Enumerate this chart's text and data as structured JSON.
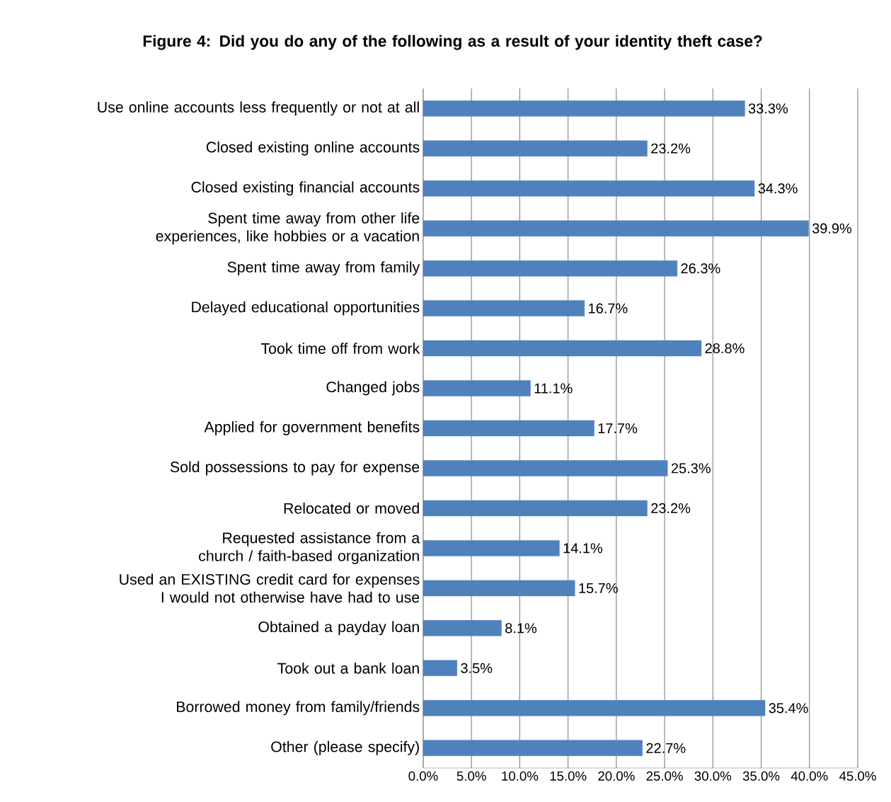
{
  "chart_data": {
    "type": "bar",
    "orientation": "horizontal",
    "title": "Figure 4:  Did you do any of the following as a result of your identity theft case?",
    "categories": [
      "Use online accounts less frequently or not at all",
      "Closed existing online accounts",
      "Closed existing financial accounts",
      "Spent time away from other life experiences, like hobbies or a vacation",
      "Spent time away from family",
      "Delayed educational opportunities",
      "Took time off from work",
      "Changed jobs",
      "Applied for government benefits",
      "Sold possessions to pay for expense",
      "Relocated or moved",
      "Requested assistance from a church / faith-based organization",
      "Used an EXISTING credit card for expenses I would not otherwise have had to use",
      "Obtained a payday loan",
      "Took out a bank loan",
      "Borrowed money from family/friends",
      "Other (please specify)"
    ],
    "values": [
      33.3,
      23.2,
      34.3,
      39.9,
      26.3,
      16.7,
      28.8,
      11.1,
      17.7,
      25.3,
      23.2,
      14.1,
      15.7,
      8.1,
      3.5,
      35.4,
      22.7
    ],
    "value_labels": [
      "33.3%",
      "23.2%",
      "34.3%",
      "39.9%",
      "26.3%",
      "16.7%",
      "28.8%",
      "11.1%",
      "17.7%",
      "25.3%",
      "23.2%",
      "14.1%",
      "15.7%",
      "8.1%",
      "3.5%",
      "35.4%",
      "22.7%"
    ],
    "color": "#4f81bd",
    "xlim": [
      0,
      45
    ],
    "xticks": [
      {
        "value": 0,
        "label": "0.0%"
      },
      {
        "value": 5,
        "label": "5.0%"
      },
      {
        "value": 10,
        "label": "10.0%"
      },
      {
        "value": 15,
        "label": "15.0%"
      },
      {
        "value": 20,
        "label": "20.0%"
      },
      {
        "value": 25,
        "label": "25.0%"
      },
      {
        "value": 30,
        "label": "30.0%"
      },
      {
        "value": 35,
        "label": "35.0%"
      },
      {
        "value": 40,
        "label": "40.0%"
      },
      {
        "value": 45,
        "label": "45.0%"
      }
    ],
    "grid": "x"
  }
}
